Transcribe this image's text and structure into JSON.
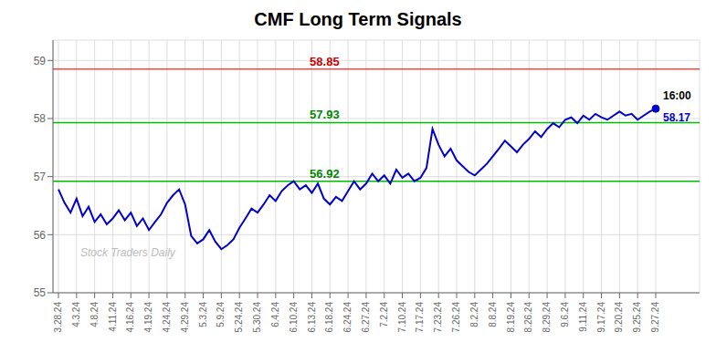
{
  "chart_data": {
    "type": "line",
    "title": "CMF Long Term Signals",
    "categories": [
      "3.28.24",
      null,
      null,
      "4.3.24",
      null,
      null,
      "4.8.24",
      null,
      null,
      "4.11.24",
      null,
      null,
      "4.16.24",
      null,
      null,
      "4.19.24",
      null,
      null,
      "4.24.24",
      null,
      null,
      "4.29.24",
      null,
      null,
      "5.3.24",
      null,
      null,
      "5.9.24",
      null,
      null,
      "5.24.24",
      null,
      null,
      "5.30.24",
      null,
      null,
      "6.4.24",
      null,
      null,
      "6.10.24",
      null,
      null,
      "6.13.24",
      null,
      null,
      "6.18.24",
      null,
      null,
      "6.24.24",
      null,
      null,
      "6.27.24",
      null,
      null,
      "7.2.24",
      null,
      null,
      "7.10.24",
      null,
      null,
      "7.17.24",
      null,
      null,
      "7.23.24",
      null,
      null,
      "7.26.24",
      null,
      null,
      "8.2.24",
      null,
      null,
      "8.8.24",
      null,
      null,
      "8.19.24",
      null,
      null,
      "8.26.24",
      null,
      null,
      "8.29.24",
      null,
      null,
      "9.6.24",
      null,
      null,
      "9.11.24",
      null,
      null,
      "9.17.24",
      null,
      null,
      "9.20.24",
      null,
      null,
      "9.25.24",
      null,
      null,
      "9.27.24"
    ],
    "values": [
      56.78,
      56.55,
      56.38,
      56.62,
      56.32,
      56.48,
      56.22,
      56.35,
      56.18,
      56.28,
      56.42,
      56.25,
      56.38,
      56.15,
      56.28,
      56.08,
      56.22,
      56.35,
      56.55,
      56.68,
      56.78,
      56.52,
      55.98,
      55.85,
      55.92,
      56.08,
      55.88,
      55.75,
      55.82,
      55.92,
      56.12,
      56.28,
      56.45,
      56.38,
      56.52,
      56.68,
      56.58,
      56.75,
      56.85,
      56.92,
      56.78,
      56.85,
      56.72,
      56.88,
      56.62,
      56.52,
      56.65,
      56.58,
      56.75,
      56.92,
      56.78,
      56.88,
      57.05,
      56.92,
      57.02,
      56.88,
      57.12,
      56.98,
      57.05,
      56.92,
      56.98,
      57.15,
      57.82,
      57.55,
      57.35,
      57.48,
      57.28,
      57.18,
      57.08,
      57.02,
      57.12,
      57.22,
      57.35,
      57.48,
      57.62,
      57.52,
      57.42,
      57.55,
      57.65,
      57.78,
      57.68,
      57.82,
      57.92,
      57.85,
      57.98,
      58.02,
      57.92,
      58.05,
      57.98,
      58.08,
      58.02,
      57.98,
      58.05,
      58.12,
      58.05,
      58.08,
      57.98,
      58.05,
      58.12,
      58.17
    ],
    "color": "#0000cc",
    "ylim": [
      55.0,
      59.35
    ],
    "yticks": [
      55,
      56,
      57,
      58,
      59
    ],
    "grid": true,
    "hlines": [
      {
        "value": 58.85,
        "label": "58.85",
        "color": "#ff4444",
        "label_color": "#cc0000"
      },
      {
        "value": 57.93,
        "label": "57.93",
        "color": "#00bb00",
        "label_color": "#008800"
      },
      {
        "value": 56.92,
        "label": "56.92",
        "color": "#00bb00",
        "label_color": "#008800"
      }
    ],
    "last_point": {
      "label": "16:00",
      "value": 58.17
    },
    "watermark": "Stock Traders Daily"
  }
}
